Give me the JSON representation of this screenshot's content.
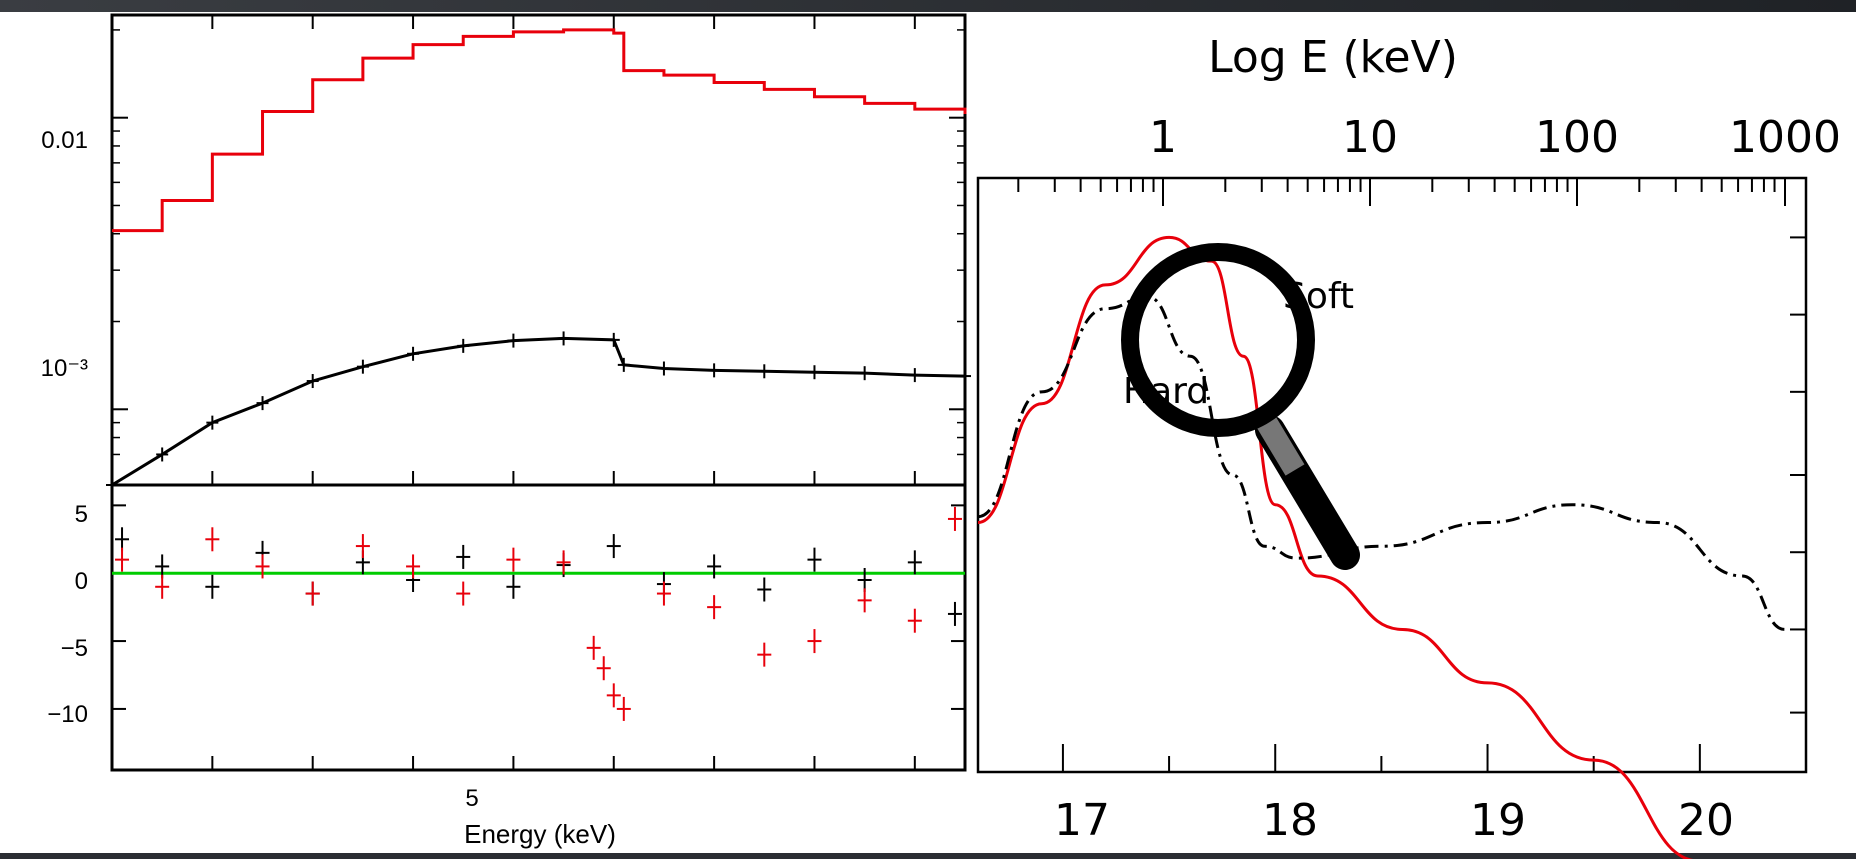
{
  "colors": {
    "model": "#e8000b",
    "data_black": "#000000",
    "zero_line": "#00cc00",
    "soft_curve": "#e8000b",
    "hard_curve": "#000000"
  },
  "chart_data": [
    {
      "type": "scatter",
      "panel": "spectrum",
      "ylabel_ticks": [
        "0.01",
        "10⁻³"
      ],
      "y_scale": "log",
      "ylim": [
        0.00055,
        0.0225
      ],
      "xlim": [
        2.0,
        10.5
      ],
      "series": [
        {
          "color": "#e8000b",
          "style": "step-line",
          "x": [
            2.0,
            2.5,
            3.0,
            3.5,
            4.0,
            4.5,
            5.0,
            5.5,
            6.0,
            6.5,
            7.0,
            7.1,
            7.5,
            8.0,
            8.5,
            9.0,
            9.5,
            10.0,
            10.5
          ],
          "y": [
            0.0041,
            0.0052,
            0.0075,
            0.0105,
            0.0135,
            0.016,
            0.0178,
            0.019,
            0.0197,
            0.02,
            0.0195,
            0.0145,
            0.014,
            0.0132,
            0.0125,
            0.0118,
            0.0112,
            0.0107,
            0.0103
          ]
        },
        {
          "color": "#000000",
          "style": "points-with-errors",
          "x": [
            2.0,
            2.5,
            3.0,
            3.5,
            4.0,
            4.5,
            5.0,
            5.5,
            6.0,
            6.5,
            7.0,
            7.1,
            7.5,
            8.0,
            8.5,
            9.0,
            9.5,
            10.0,
            10.5
          ],
          "y": [
            0.00055,
            0.0007,
            0.0009,
            0.00105,
            0.00125,
            0.0014,
            0.00155,
            0.00165,
            0.00172,
            0.00175,
            0.00173,
            0.00142,
            0.00138,
            0.00136,
            0.00135,
            0.00134,
            0.00133,
            0.00131,
            0.0013
          ]
        }
      ]
    },
    {
      "type": "scatter",
      "panel": "residuals",
      "xlabel": "Energy (keV)",
      "x_ticklabels": [
        "5"
      ],
      "y_ticks": [
        5,
        0,
        -5,
        -10
      ],
      "ylim": [
        -14.5,
        6.5
      ],
      "xlim": [
        2.0,
        10.5
      ],
      "zero_line": 0,
      "series": [
        {
          "color": "#000000",
          "x": [
            2.1,
            2.5,
            3.0,
            3.5,
            4.0,
            4.5,
            5.0,
            5.5,
            6.0,
            6.5,
            7.0,
            7.5,
            8.0,
            8.5,
            9.0,
            9.5,
            10.0,
            10.4
          ],
          "y": [
            2.5,
            0.5,
            -1.0,
            1.5,
            -1.5,
            0.8,
            -0.5,
            1.2,
            -1.0,
            0.6,
            2.0,
            -0.8,
            0.5,
            -1.2,
            1.0,
            -0.5,
            0.8,
            -3.0
          ]
        },
        {
          "color": "#e8000b",
          "x": [
            2.1,
            2.5,
            3.0,
            3.5,
            4.0,
            4.5,
            5.0,
            5.5,
            6.0,
            6.5,
            6.8,
            6.9,
            7.0,
            7.1,
            7.5,
            8.0,
            8.5,
            9.0,
            9.5,
            10.0,
            10.4
          ],
          "y": [
            1.0,
            -1.0,
            2.5,
            0.5,
            -1.5,
            2.0,
            0.5,
            -1.5,
            1.0,
            0.8,
            -5.5,
            -7.0,
            -9.0,
            -10.0,
            -1.5,
            -2.5,
            -6.0,
            -5.0,
            -2.0,
            -3.5,
            4.0
          ]
        }
      ]
    },
    {
      "type": "line",
      "panel": "model-curves",
      "top_axis_label": "Log E (keV)",
      "top_ticklabels": [
        "1",
        "10",
        "100",
        "1000"
      ],
      "bottom_ticklabels": [
        "17",
        "18",
        "19",
        "20"
      ],
      "xlim": [
        16.6,
        20.5
      ],
      "series": [
        {
          "name": "Soft",
          "color": "#e8000b",
          "x": [
            16.6,
            16.9,
            17.2,
            17.5,
            17.7,
            17.85,
            18.0,
            18.2,
            18.6,
            19.0,
            19.5,
            20.0,
            20.1
          ],
          "y": [
            0.42,
            0.62,
            0.82,
            0.9,
            0.86,
            0.7,
            0.45,
            0.33,
            0.24,
            0.15,
            0.02,
            -0.15,
            -0.2
          ]
        },
        {
          "name": "Hard",
          "color": "#000000",
          "style": "dash-dot",
          "x": [
            16.6,
            16.9,
            17.2,
            17.4,
            17.6,
            17.8,
            17.95,
            18.1,
            18.5,
            19.0,
            19.4,
            19.8,
            20.2,
            20.4
          ],
          "y": [
            0.43,
            0.64,
            0.78,
            0.8,
            0.7,
            0.5,
            0.38,
            0.36,
            0.38,
            0.42,
            0.45,
            0.42,
            0.33,
            0.24
          ]
        }
      ]
    }
  ],
  "labels": {
    "soft": "Soft",
    "hard": "Hard"
  },
  "icons": {
    "magnifier": "magnifying-glass-icon"
  }
}
